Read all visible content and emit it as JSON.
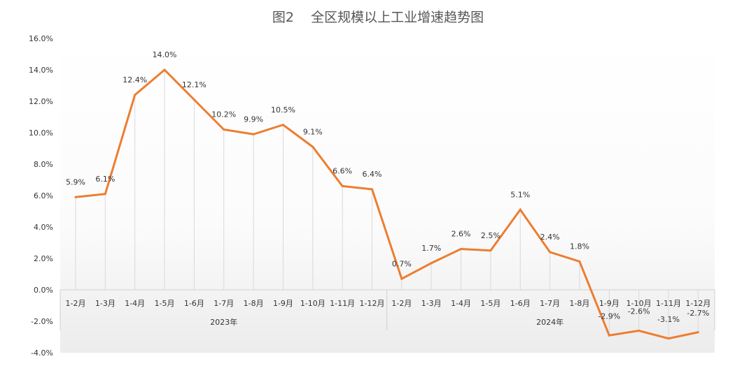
{
  "chart_data": {
    "type": "line",
    "title": "图2    全区规模以上工业增速趋势图",
    "categories": [
      "1-2月",
      "1-3月",
      "1-4月",
      "1-5月",
      "1-6月",
      "1-7月",
      "1-8月",
      "1-9月",
      "1-10月",
      "1-11月",
      "1-12月",
      "1-2月",
      "1-3月",
      "1-4月",
      "1-5月",
      "1-6月",
      "1-7月",
      "1-8月",
      "1-9月",
      "1-10月",
      "1-11月",
      "1-12月"
    ],
    "groups": [
      {
        "label": "2023年",
        "start": 0,
        "end": 10
      },
      {
        "label": "2024年",
        "start": 11,
        "end": 21
      }
    ],
    "values": [
      5.9,
      6.1,
      12.4,
      14.0,
      12.1,
      10.2,
      9.9,
      10.5,
      9.1,
      6.6,
      6.4,
      0.7,
      1.7,
      2.6,
      2.5,
      5.1,
      2.4,
      1.8,
      -2.9,
      -2.6,
      -3.1,
      -2.7
    ],
    "data_labels": [
      "5.9%",
      "6.1%",
      "12.4%",
      "14.0%",
      "12.1%",
      "10.2%",
      "9.9%",
      "10.5%",
      "9.1%",
      "6.6%",
      "6.4%",
      "0.7%",
      "1.7%",
      "2.6%",
      "2.5%",
      "5.1%",
      "2.4%",
      "1.8%",
      "-2.9%",
      "-2.6%",
      "-3.1%",
      "-2.7%"
    ],
    "y_ticks": [
      "16.0%",
      "14.0%",
      "12.0%",
      "10.0%",
      "8.0%",
      "6.0%",
      "4.0%",
      "2.0%",
      "0.0%",
      "-2.0%",
      "-4.0%"
    ],
    "ylim": [
      -4,
      16
    ],
    "grid": "vertical drop lines",
    "legend": "none",
    "line_color": "#ED7D31"
  }
}
